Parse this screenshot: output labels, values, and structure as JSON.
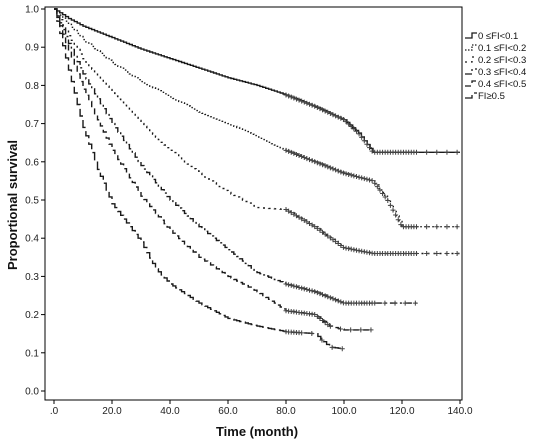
{
  "chart_data": {
    "type": "line",
    "subtype": "kaplan-meier step survival curves with censor marks",
    "xlabel": "Time (month)",
    "ylabel": "Proportional survival",
    "xlim": [
      0,
      140
    ],
    "ylim": [
      0,
      1.0
    ],
    "x_ticks": [
      ".0",
      "20.0",
      "40.0",
      "60.0",
      "80.0",
      "100.0",
      "120.0",
      "140.0"
    ],
    "y_ticks": [
      "0.0",
      "0.1",
      "0.2",
      "0.3",
      "0.4",
      "0.5",
      "0.6",
      "0.7",
      "0.8",
      "0.9",
      "1.0"
    ],
    "grid": false,
    "legend_position": "right",
    "series": [
      {
        "name": "0 ≤FI<0.1",
        "dash": "solid",
        "x": [
          0,
          5,
          10,
          20,
          30,
          40,
          50,
          60,
          70,
          80,
          90,
          100,
          105,
          110,
          140
        ],
        "y": [
          1.0,
          0.975,
          0.955,
          0.925,
          0.895,
          0.87,
          0.845,
          0.82,
          0.8,
          0.775,
          0.745,
          0.71,
          0.675,
          0.625,
          0.625
        ],
        "censor_from": 80
      },
      {
        "name": "0.1 ≤FI<0.2",
        "dash": "fine-dot",
        "x": [
          0,
          5,
          10,
          20,
          30,
          40,
          50,
          60,
          70,
          80,
          90,
          100,
          110,
          115,
          120,
          140
        ],
        "y": [
          1.0,
          0.96,
          0.92,
          0.86,
          0.81,
          0.77,
          0.73,
          0.7,
          0.665,
          0.63,
          0.6,
          0.57,
          0.55,
          0.5,
          0.43,
          0.43
        ],
        "censor_from": 80
      },
      {
        "name": "0.2 ≤FI<0.3",
        "dash": "coarse-dot",
        "x": [
          0,
          5,
          10,
          20,
          30,
          40,
          50,
          60,
          70,
          80,
          90,
          100,
          110,
          140
        ],
        "y": [
          1.0,
          0.93,
          0.87,
          0.78,
          0.7,
          0.63,
          0.57,
          0.52,
          0.48,
          0.475,
          0.43,
          0.375,
          0.36,
          0.36
        ],
        "censor_from": 80
      },
      {
        "name": "0.3 ≤FI<0.4",
        "dash": "dash-dot",
        "x": [
          0,
          5,
          10,
          20,
          30,
          40,
          50,
          60,
          70,
          80,
          90,
          95,
          100,
          125
        ],
        "y": [
          1.0,
          0.91,
          0.83,
          0.7,
          0.59,
          0.5,
          0.43,
          0.37,
          0.31,
          0.28,
          0.26,
          0.245,
          0.23,
          0.23
        ],
        "censor_from": 80
      },
      {
        "name": "0.4 ≤FI<0.5",
        "dash": "dashed",
        "x": [
          0,
          5,
          10,
          20,
          30,
          40,
          50,
          60,
          70,
          80,
          90,
          95,
          100,
          110
        ],
        "y": [
          1.0,
          0.89,
          0.79,
          0.63,
          0.51,
          0.42,
          0.35,
          0.3,
          0.26,
          0.21,
          0.2,
          0.17,
          0.16,
          0.16
        ],
        "censor_from": 80
      },
      {
        "name": "FI≥0.5",
        "dash": "long-dash",
        "x": [
          0,
          5,
          10,
          15,
          20,
          30,
          35,
          40,
          50,
          60,
          70,
          80,
          90,
          95,
          100
        ],
        "y": [
          1.0,
          0.84,
          0.69,
          0.58,
          0.49,
          0.39,
          0.32,
          0.28,
          0.23,
          0.19,
          0.17,
          0.155,
          0.15,
          0.115,
          0.11
        ],
        "censor_from": 80
      }
    ]
  }
}
